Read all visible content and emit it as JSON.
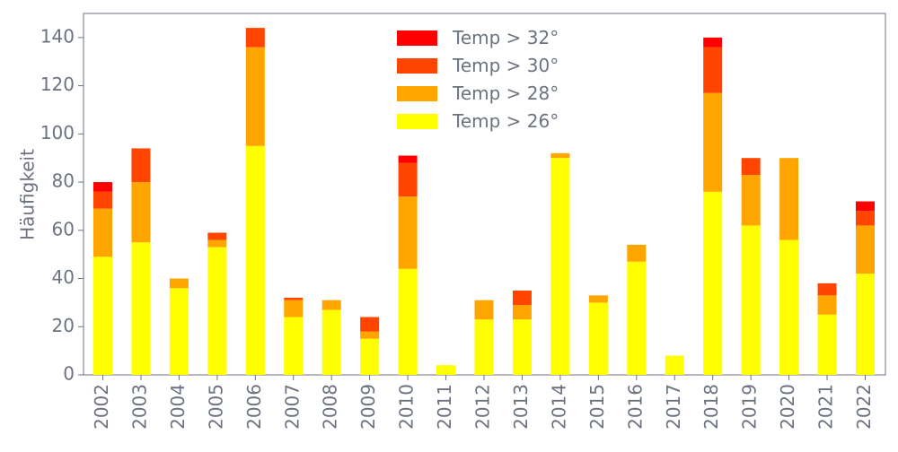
{
  "chart_data": {
    "type": "bar",
    "stacked": true,
    "ylabel": "Häufigkeit",
    "ylim": [
      0,
      150
    ],
    "yticks": [
      "0",
      "20",
      "40",
      "60",
      "80",
      "100",
      "120",
      "140"
    ],
    "categories": [
      "2002",
      "2003",
      "2004",
      "2005",
      "2006",
      "2007",
      "2008",
      "2009",
      "2010",
      "2011",
      "2012",
      "2013",
      "2014",
      "2015",
      "2016",
      "2017",
      "2018",
      "2019",
      "2020",
      "2021",
      "2022"
    ],
    "series": [
      {
        "name": "Temp > 26°",
        "color": "#ffff00",
        "values": [
          49,
          55,
          36,
          53,
          95,
          24,
          27,
          15,
          44,
          4,
          23,
          23,
          90,
          30,
          47,
          8,
          76,
          62,
          56,
          25,
          42
        ]
      },
      {
        "name": "Temp > 28°",
        "color": "#ffa500",
        "values": [
          20,
          25,
          4,
          3,
          41,
          7,
          4,
          3,
          30,
          0,
          8,
          6,
          2,
          3,
          7,
          0,
          41,
          21,
          34,
          8,
          20
        ]
      },
      {
        "name": "Temp > 30°",
        "color": "#ff4500",
        "values": [
          7,
          14,
          0,
          3,
          8,
          1,
          0,
          6,
          14,
          0,
          0,
          6,
          0,
          0,
          0,
          0,
          19,
          7,
          0,
          5,
          6
        ]
      },
      {
        "name": "Temp > 32°",
        "color": "#ff0000",
        "values": [
          4,
          0,
          0,
          0,
          0,
          0,
          0,
          0,
          3,
          0,
          0,
          0,
          0,
          0,
          0,
          0,
          4,
          0,
          0,
          0,
          4
        ]
      }
    ],
    "legend": {
      "placement": "top-center",
      "order": [
        "Temp > 32°",
        "Temp > 30°",
        "Temp > 28°",
        "Temp > 26°"
      ]
    },
    "grid": false
  }
}
